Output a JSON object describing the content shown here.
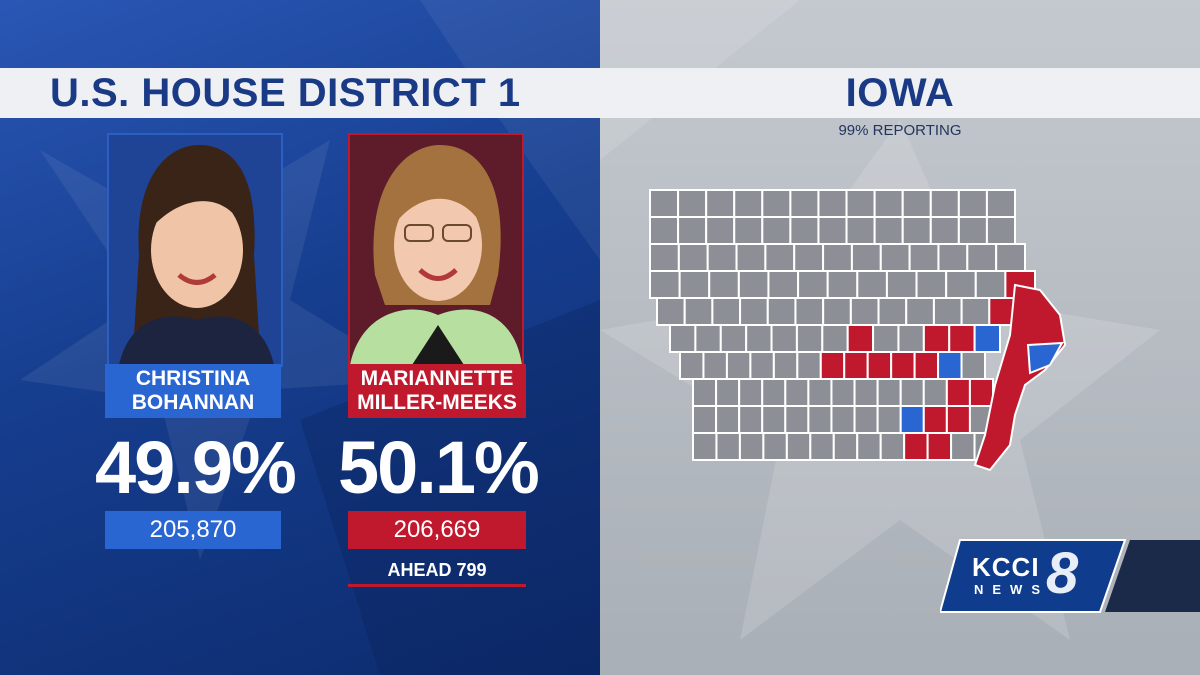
{
  "race": {
    "title": "U.S. HOUSE DISTRICT 1"
  },
  "state": {
    "title": "IOWA",
    "reporting": "99% REPORTING"
  },
  "candidates": [
    {
      "first": "CHRISTINA",
      "last": "BOHANNAN",
      "percent": "49.9%",
      "votes": "205,870",
      "party_color": "#2a66d1"
    },
    {
      "first": "MARIANNETTE",
      "last": "MILLER-MEEKS",
      "percent": "50.1%",
      "votes": "206,669",
      "lead": "AHEAD 799",
      "party_color": "#c0182d"
    }
  ],
  "map": {
    "county_default": "#8c9096",
    "gop_color": "#c0182d",
    "dem_color": "#2a66d1",
    "border_color": "#ffffff"
  },
  "station": {
    "call": "KCCI",
    "word": "NEWS",
    "channel": "8"
  }
}
